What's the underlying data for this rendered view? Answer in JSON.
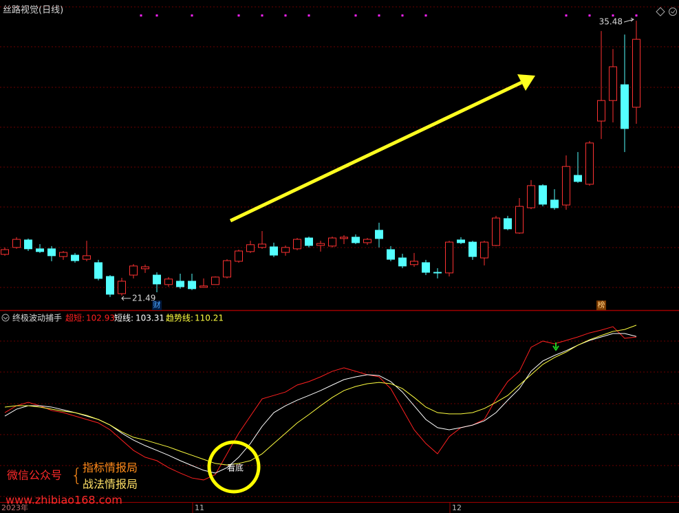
{
  "chart_data": [
    {
      "type": "candlestick",
      "title": "丝路视觉(日线)",
      "ylim": [
        20.86,
        36.53
      ],
      "up_color": "#ff3232",
      "down_color": "#54ffff",
      "open": [
        23.65,
        24.0,
        24.38,
        23.93,
        23.93,
        23.54,
        23.61,
        23.4,
        23.23,
        22.53,
        21.66,
        22.6,
        22.92,
        22.6,
        22.12,
        22.29,
        22.29,
        21.98,
        22.12,
        22.5,
        23.3,
        23.79,
        24.0,
        24.03,
        23.75,
        23.93,
        24.48,
        24.1,
        24.07,
        24.45,
        24.52,
        24.24,
        24.87,
        23.89,
        23.47,
        23.13,
        23.23,
        22.74,
        22.71,
        24.38,
        24.27,
        23.47,
        24.1,
        25.46,
        24.73,
        26.01,
        27.13,
        26.4,
        26.15,
        27.65,
        27.2,
        30.4,
        31.44,
        32.24,
        31.1
      ],
      "high": [
        24.0,
        24.52,
        24.45,
        24.17,
        24.07,
        23.82,
        23.72,
        24.34,
        23.37,
        22.6,
        22.46,
        23.16,
        23.13,
        22.74,
        22.5,
        22.67,
        22.67,
        22.43,
        22.53,
        23.4,
        23.89,
        24.34,
        24.83,
        24.24,
        24.1,
        24.48,
        24.55,
        24.34,
        24.55,
        24.62,
        24.66,
        24.48,
        25.25,
        24.07,
        23.68,
        23.72,
        23.37,
        22.95,
        24.34,
        24.52,
        24.34,
        24.34,
        25.6,
        25.6,
        26.5,
        27.41,
        27.2,
        26.95,
        28.66,
        28.83,
        29.39,
        34.96,
        34.05,
        34.78,
        35.48
      ],
      "low": [
        23.58,
        23.93,
        23.82,
        23.72,
        23.3,
        23.37,
        23.23,
        23.3,
        22.33,
        21.49,
        21.56,
        22.43,
        22.71,
        21.73,
        22.01,
        21.91,
        21.84,
        21.98,
        22.12,
        22.43,
        23.23,
        23.72,
        23.93,
        23.51,
        23.58,
        23.86,
        24.0,
        23.79,
        24.0,
        24.17,
        24.17,
        24.13,
        24.0,
        23.3,
        22.95,
        23.02,
        22.6,
        22.43,
        22.53,
        24.17,
        23.37,
        23.09,
        24.07,
        24.87,
        24.69,
        25.94,
        26.08,
        25.91,
        25.91,
        27.27,
        27.13,
        29.49,
        30.33,
        28.83,
        30.26
      ],
      "close": [
        23.89,
        24.41,
        23.93,
        23.79,
        23.58,
        23.75,
        23.33,
        23.58,
        22.43,
        21.63,
        22.29,
        23.06,
        23.02,
        22.15,
        22.4,
        22.01,
        21.91,
        22.05,
        22.5,
        23.33,
        23.82,
        24.14,
        24.17,
        23.61,
        24.0,
        24.41,
        24.1,
        24.2,
        24.48,
        24.52,
        24.24,
        24.41,
        24.45,
        23.4,
        23.06,
        23.3,
        22.74,
        22.71,
        24.27,
        24.24,
        23.54,
        24.27,
        25.49,
        24.94,
        26.08,
        27.13,
        26.19,
        26.01,
        28.1,
        27.34,
        29.29,
        31.44,
        33.15,
        30.02,
        34.54
      ],
      "markers": [
        "财",
        "榜"
      ]
    },
    {
      "type": "line",
      "title": "终极波动捕手",
      "ylim": [
        2,
        119
      ],
      "annotation": "看底",
      "categories": [
        "2023年",
        null,
        null,
        null,
        null,
        null,
        null,
        null,
        null,
        null,
        null,
        null,
        null,
        null,
        null,
        null,
        "11",
        null,
        null,
        null,
        null,
        null,
        null,
        null,
        null,
        null,
        null,
        null,
        null,
        null,
        null,
        null,
        null,
        null,
        null,
        null,
        null,
        null,
        "12",
        null,
        null,
        null,
        null,
        null,
        null,
        null,
        null,
        null,
        null,
        null,
        null,
        null,
        null,
        null,
        null
      ],
      "series": [
        {
          "name": "超短:",
          "color": "#ff2020",
          "values": [
            56.7,
            60.9,
            63.0,
            60.9,
            58.0,
            56.7,
            54.6,
            52.5,
            50.4,
            46.2,
            39.9,
            33.6,
            29.4,
            27.3,
            23.0,
            19.7,
            16.7,
            15.5,
            18.8,
            31.5,
            44.1,
            54.6,
            65.1,
            67.2,
            69.3,
            73.6,
            75.7,
            78.6,
            82.0,
            84.1,
            82.0,
            79.9,
            78.6,
            71.4,
            58.8,
            46.2,
            37.8,
            31.5,
            42.0,
            47.5,
            49.1,
            52.5,
            65.1,
            75.7,
            82.0,
            96.7,
            100.5,
            98.8,
            100.9,
            103.0,
            105.5,
            107.2,
            109.3,
            102.2,
            102.93
          ]
        },
        {
          "name": "短线:",
          "color": "#ffffff",
          "values": [
            54.6,
            58.8,
            60.9,
            60.9,
            60.1,
            58.4,
            56.7,
            54.6,
            52.5,
            49.1,
            44.1,
            39.9,
            36.5,
            33.6,
            30.6,
            27.3,
            24.3,
            21.4,
            19.7,
            23.0,
            29.4,
            37.8,
            48.3,
            56.7,
            60.9,
            64.3,
            67.2,
            70.2,
            73.6,
            76.9,
            78.6,
            79.9,
            79.4,
            75.7,
            69.3,
            60.9,
            52.5,
            47.5,
            46.2,
            47.5,
            49.1,
            51.7,
            56.7,
            64.3,
            71.4,
            82.0,
            88.3,
            91.7,
            94.6,
            98.0,
            100.9,
            103.0,
            105.1,
            105.1,
            103.31
          ]
        },
        {
          "name": "趋势线:",
          "color": "#ffff40",
          "values": [
            60.1,
            60.9,
            60.9,
            60.1,
            58.8,
            57.6,
            56.7,
            55.0,
            52.5,
            49.1,
            44.9,
            41.6,
            39.9,
            37.8,
            35.7,
            33.1,
            30.6,
            28.1,
            25.6,
            24.7,
            25.6,
            27.3,
            31.5,
            37.8,
            44.1,
            50.4,
            55.5,
            60.9,
            66.0,
            70.2,
            72.7,
            74.4,
            75.2,
            74.4,
            71.4,
            66.0,
            60.1,
            56.7,
            55.9,
            55.9,
            56.7,
            59.2,
            63.0,
            67.2,
            73.6,
            79.9,
            86.2,
            90.4,
            93.8,
            98.0,
            101.3,
            103.9,
            106.4,
            107.6,
            110.21
          ]
        }
      ]
    }
  ],
  "watermark": {
    "account": "微信公众号",
    "line1": "指标情报局",
    "line2": "战法情报局",
    "url": "www.zhibiao168.com"
  }
}
